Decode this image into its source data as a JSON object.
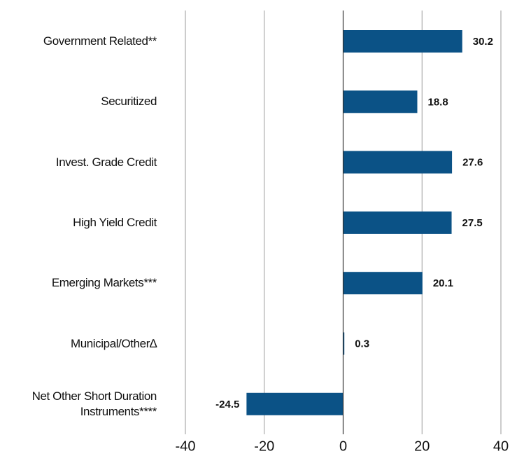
{
  "chart_data": {
    "type": "hbar",
    "categories": [
      "Government Related**",
      "Securitized",
      "Invest. Grade Credit",
      "High Yield Credit",
      "Emerging Markets***",
      "Municipal/Other∆",
      "Net Other Short Duration Instruments****"
    ],
    "values": [
      30.2,
      18.8,
      27.6,
      27.5,
      20.1,
      0.3,
      -24.5
    ],
    "color": "#0b5286",
    "xlim": [
      -40,
      40
    ],
    "xticks": [
      -40,
      -20,
      0,
      20,
      40
    ],
    "grid": true
  }
}
